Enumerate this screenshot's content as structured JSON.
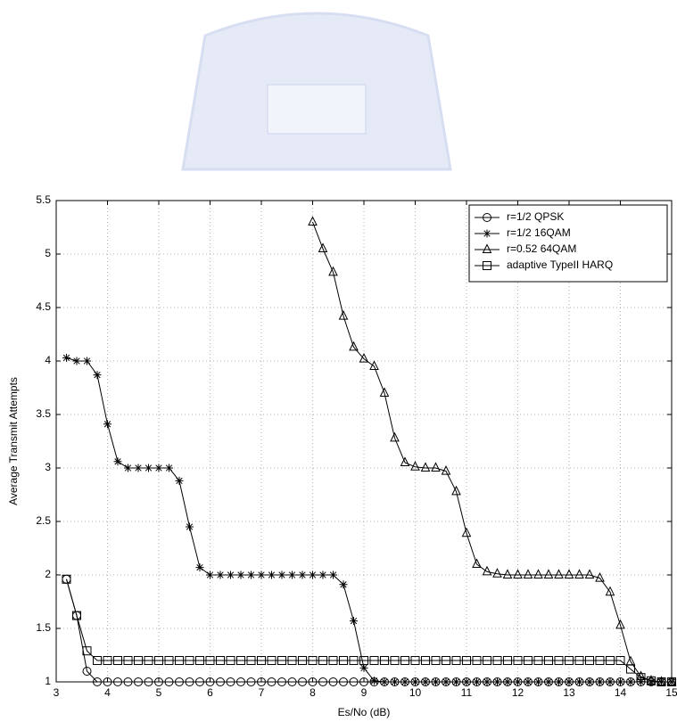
{
  "chart_data": {
    "type": "line",
    "xlabel": "Es/No (dB)",
    "ylabel": "Average Transmit Attempts",
    "x": [
      3.2,
      3.4,
      3.6,
      3.8,
      4.0,
      4.2,
      4.4,
      4.6,
      4.8,
      5.0,
      5.2,
      5.4,
      5.6,
      5.8,
      6.0,
      6.2,
      6.4,
      6.6,
      6.8,
      7.0,
      7.2,
      7.4,
      7.6,
      7.8,
      8.0,
      8.2,
      8.4,
      8.6,
      8.8,
      9.0,
      9.2,
      9.4,
      9.6,
      9.8,
      10.0,
      10.2,
      10.4,
      10.6,
      10.8,
      11.0,
      11.2,
      11.4,
      11.6,
      11.8,
      12.0,
      12.2,
      12.4,
      12.6,
      12.8,
      13.0,
      13.2,
      13.4,
      13.6,
      13.8,
      14.0,
      14.2,
      14.4,
      14.6,
      14.8,
      15.0
    ],
    "series": [
      {
        "name": "r=1/2 QPSK",
        "color": "#000000",
        "marker": "circle",
        "values": [
          1.96,
          1.62,
          1.1,
          1,
          1,
          1,
          1,
          1,
          1,
          1,
          1,
          1,
          1,
          1,
          1,
          1,
          1,
          1,
          1,
          1,
          1,
          1,
          1,
          1,
          1,
          1,
          1,
          1,
          1,
          1,
          1,
          1,
          1,
          1,
          1,
          1,
          1,
          1,
          1,
          1,
          1,
          1,
          1,
          1,
          1,
          1,
          1,
          1,
          1,
          1,
          1,
          1,
          1,
          1,
          1,
          1,
          1,
          1,
          1,
          1
        ]
      },
      {
        "name": "r=1/2 16QAM",
        "color": "#000000",
        "marker": "star",
        "values": [
          4.03,
          4,
          4,
          3.87,
          3.41,
          3.06,
          3,
          3,
          3,
          3,
          3,
          2.88,
          2.45,
          2.07,
          2,
          2,
          2,
          2,
          2,
          2,
          2,
          2,
          2,
          2,
          2,
          2,
          2,
          1.91,
          1.57,
          1.13,
          1.01,
          1,
          1,
          1,
          1,
          1,
          1,
          1,
          1,
          1,
          1,
          1,
          1,
          1,
          1,
          1,
          1,
          1,
          1,
          1,
          1,
          1,
          1,
          1,
          1,
          1,
          1,
          1,
          1,
          1
        ]
      },
      {
        "name": "r=0.52 64QAM",
        "color": "#000000",
        "marker": "triangle",
        "values": [
          null,
          null,
          null,
          null,
          null,
          null,
          null,
          null,
          null,
          null,
          null,
          null,
          null,
          null,
          null,
          null,
          null,
          null,
          null,
          null,
          null,
          null,
          null,
          null,
          5.3,
          5.05,
          4.83,
          4.42,
          4.13,
          4.02,
          3.95,
          3.7,
          3.28,
          3.05,
          3.01,
          3,
          3,
          2.97,
          2.78,
          2.39,
          2.1,
          2.03,
          2.01,
          2,
          2,
          2,
          2,
          2,
          2,
          2,
          2,
          2,
          1.97,
          1.84,
          1.53,
          1.19,
          1.05,
          1.01,
          1,
          1
        ]
      },
      {
        "name": "adaptive TypeII HARQ",
        "color": "#000000",
        "marker": "square",
        "values": [
          1.96,
          1.62,
          1.29,
          1.2,
          1.2,
          1.2,
          1.2,
          1.2,
          1.2,
          1.2,
          1.2,
          1.2,
          1.2,
          1.2,
          1.2,
          1.2,
          1.2,
          1.2,
          1.2,
          1.2,
          1.2,
          1.2,
          1.2,
          1.2,
          1.2,
          1.2,
          1.2,
          1.2,
          1.2,
          1.2,
          1.2,
          1.2,
          1.2,
          1.2,
          1.2,
          1.2,
          1.2,
          1.2,
          1.2,
          1.2,
          1.2,
          1.2,
          1.2,
          1.2,
          1.2,
          1.2,
          1.2,
          1.2,
          1.2,
          1.2,
          1.2,
          1.2,
          1.2,
          1.2,
          1.2,
          1.12,
          1.04,
          1.01,
          1,
          1
        ]
      }
    ],
    "xlim": [
      3,
      15
    ],
    "xticks": [
      3,
      4,
      5,
      6,
      7,
      8,
      9,
      10,
      11,
      12,
      13,
      14,
      15
    ],
    "ylim": [
      1,
      5.5
    ],
    "yticks": [
      1,
      1.5,
      2,
      2.5,
      3,
      3.5,
      4,
      4.5,
      5,
      5.5
    ],
    "grid": true,
    "legend": "upper right"
  }
}
